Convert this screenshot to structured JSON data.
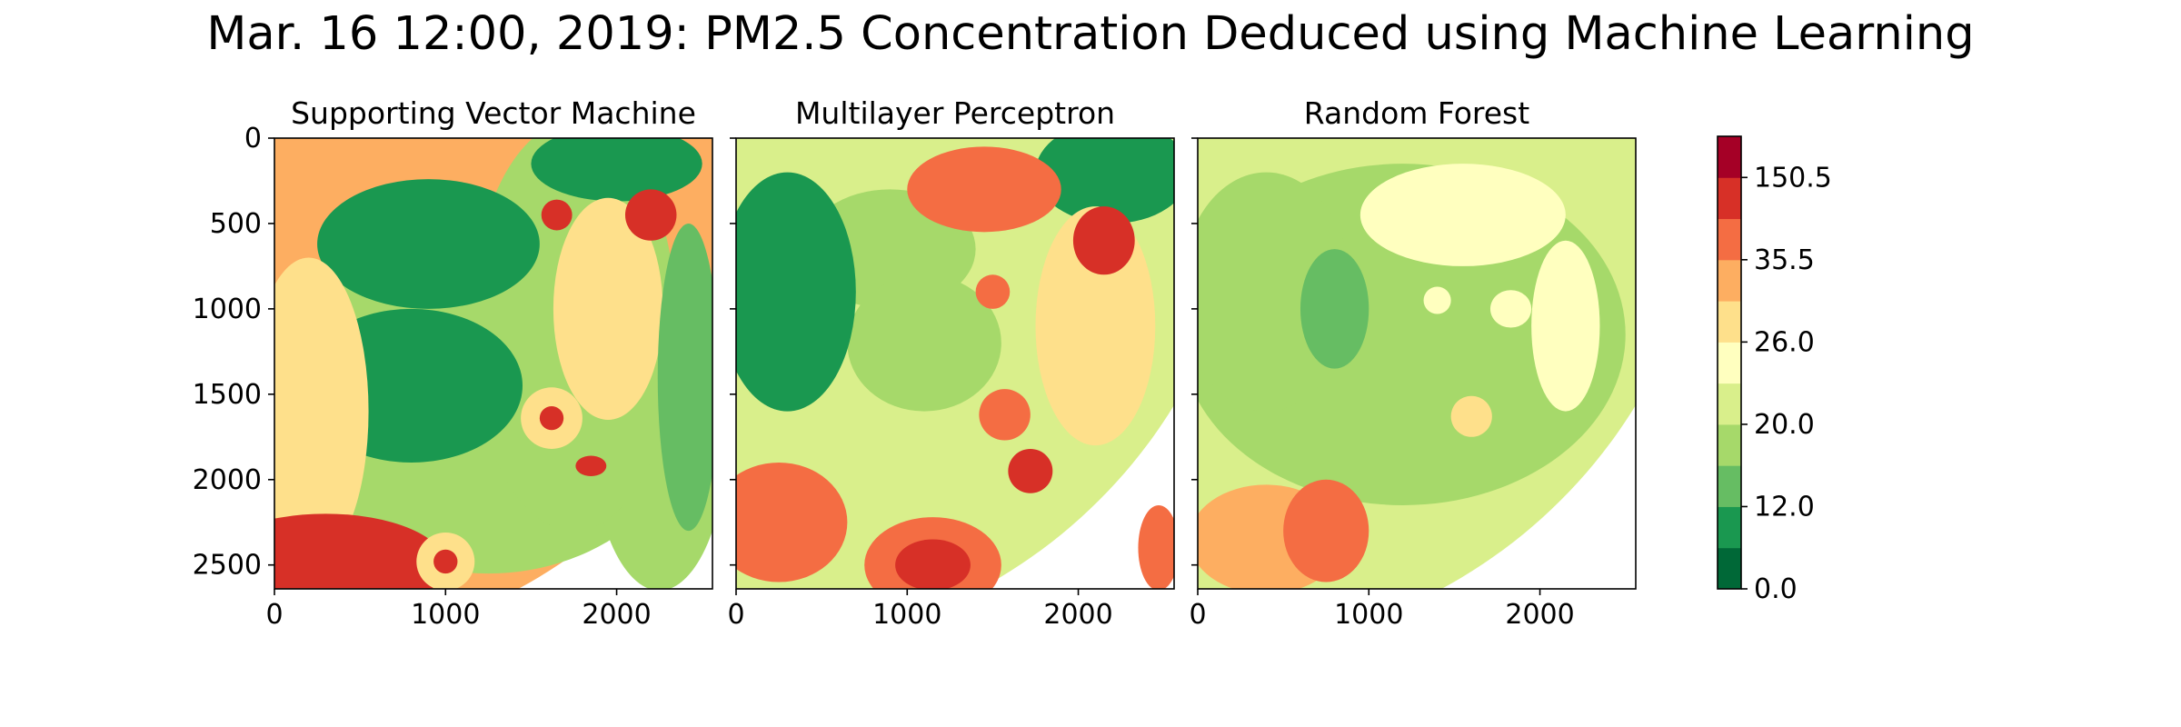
{
  "figure": {
    "title": "Mar. 16 12:00, 2019: PM2.5 Concentration Deduced using Machine Learning"
  },
  "chart_data": [
    {
      "type": "heatmap",
      "title": "Supporting Vector Machine",
      "x_ticks": [
        0,
        1000,
        2000
      ],
      "y_ticks": [
        0,
        500,
        1000,
        1500,
        2000,
        2500
      ],
      "xlim": [
        0,
        2560
      ],
      "ylim": [
        2640,
        0
      ],
      "regions": [
        {
          "kind": "ellipse",
          "cx": 0,
          "cy": 0,
          "rx": 3000,
          "ry": 3000,
          "level": 7
        },
        {
          "kind": "ellipse",
          "cx": 1250,
          "cy": 1450,
          "rx": 1250,
          "ry": 1100,
          "level": 3
        },
        {
          "kind": "ellipse",
          "cx": 2250,
          "cy": 1700,
          "rx": 400,
          "ry": 950,
          "level": 3
        },
        {
          "kind": "ellipse",
          "cx": 1750,
          "cy": 1100,
          "rx": 600,
          "ry": 1200,
          "level": 3
        },
        {
          "kind": "ellipse",
          "cx": 900,
          "cy": 620,
          "rx": 650,
          "ry": 380,
          "level": 1
        },
        {
          "kind": "ellipse",
          "cx": 800,
          "cy": 1450,
          "rx": 650,
          "ry": 450,
          "level": 1
        },
        {
          "kind": "ellipse",
          "cx": 2000,
          "cy": 150,
          "rx": 500,
          "ry": 220,
          "level": 1
        },
        {
          "kind": "ellipse",
          "cx": 1950,
          "cy": 1000,
          "rx": 320,
          "ry": 650,
          "level": 6
        },
        {
          "kind": "ellipse",
          "cx": 2420,
          "cy": 1400,
          "rx": 180,
          "ry": 900,
          "level": 2
        },
        {
          "kind": "ellipse",
          "cx": 200,
          "cy": 1600,
          "rx": 350,
          "ry": 900,
          "level": 6
        },
        {
          "kind": "ellipse",
          "cx": 300,
          "cy": 2500,
          "rx": 700,
          "ry": 300,
          "level": 9
        },
        {
          "kind": "ellipse",
          "cx": 1620,
          "cy": 1640,
          "rx": 180,
          "ry": 180,
          "level": 6
        },
        {
          "kind": "ellipse",
          "cx": 1620,
          "cy": 1640,
          "rx": 70,
          "ry": 70,
          "level": 9
        },
        {
          "kind": "ellipse",
          "cx": 1000,
          "cy": 2480,
          "rx": 170,
          "ry": 170,
          "level": 6
        },
        {
          "kind": "ellipse",
          "cx": 1000,
          "cy": 2480,
          "rx": 70,
          "ry": 70,
          "level": 9
        },
        {
          "kind": "ellipse",
          "cx": 1650,
          "cy": 450,
          "rx": 90,
          "ry": 90,
          "level": 9
        },
        {
          "kind": "ellipse",
          "cx": 2200,
          "cy": 450,
          "rx": 150,
          "ry": 150,
          "level": 9
        },
        {
          "kind": "ellipse",
          "cx": 1850,
          "cy": 1920,
          "rx": 90,
          "ry": 60,
          "level": 9
        }
      ]
    },
    {
      "type": "heatmap",
      "title": "Multilayer Perceptron",
      "x_ticks": [
        0,
        1000,
        2000
      ],
      "y_ticks": [
        0,
        500,
        1000,
        1500,
        2000,
        2500
      ],
      "xlim": [
        0,
        2560
      ],
      "ylim": [
        2640,
        0
      ],
      "regions": [
        {
          "kind": "ellipse",
          "cx": 0,
          "cy": 0,
          "rx": 3000,
          "ry": 3000,
          "level": 4
        },
        {
          "kind": "ellipse",
          "cx": 900,
          "cy": 650,
          "rx": 500,
          "ry": 350,
          "level": 3
        },
        {
          "kind": "ellipse",
          "cx": 1100,
          "cy": 1200,
          "rx": 450,
          "ry": 400,
          "level": 3
        },
        {
          "kind": "ellipse",
          "cx": 300,
          "cy": 900,
          "rx": 400,
          "ry": 700,
          "level": 1
        },
        {
          "kind": "ellipse",
          "cx": 2200,
          "cy": 200,
          "rx": 450,
          "ry": 300,
          "level": 1
        },
        {
          "kind": "ellipse",
          "cx": 2100,
          "cy": 1100,
          "rx": 350,
          "ry": 700,
          "level": 6
        },
        {
          "kind": "ellipse",
          "cx": 2150,
          "cy": 600,
          "rx": 180,
          "ry": 200,
          "level": 9
        },
        {
          "kind": "ellipse",
          "cx": 1450,
          "cy": 300,
          "rx": 450,
          "ry": 250,
          "level": 8
        },
        {
          "kind": "ellipse",
          "cx": 250,
          "cy": 2250,
          "rx": 400,
          "ry": 350,
          "level": 8
        },
        {
          "kind": "ellipse",
          "cx": 1150,
          "cy": 2500,
          "rx": 400,
          "ry": 280,
          "level": 8
        },
        {
          "kind": "ellipse",
          "cx": 1150,
          "cy": 2500,
          "rx": 220,
          "ry": 150,
          "level": 9
        },
        {
          "kind": "ellipse",
          "cx": 1570,
          "cy": 1620,
          "rx": 150,
          "ry": 150,
          "level": 8
        },
        {
          "kind": "ellipse",
          "cx": 1720,
          "cy": 1950,
          "rx": 130,
          "ry": 130,
          "level": 9
        },
        {
          "kind": "ellipse",
          "cx": 1500,
          "cy": 900,
          "rx": 100,
          "ry": 100,
          "level": 8
        },
        {
          "kind": "ellipse",
          "cx": 2470,
          "cy": 2400,
          "rx": 120,
          "ry": 250,
          "level": 8
        }
      ]
    },
    {
      "type": "heatmap",
      "title": "Random Forest",
      "x_ticks": [
        0,
        1000,
        2000
      ],
      "y_ticks": [
        0,
        500,
        1000,
        1500,
        2000,
        2500
      ],
      "xlim": [
        0,
        2560
      ],
      "ylim": [
        2640,
        0
      ],
      "regions": [
        {
          "kind": "ellipse",
          "cx": 0,
          "cy": 0,
          "rx": 3000,
          "ry": 3000,
          "level": 4
        },
        {
          "kind": "ellipse",
          "cx": 1200,
          "cy": 1150,
          "rx": 1300,
          "ry": 1000,
          "level": 3
        },
        {
          "kind": "ellipse",
          "cx": 400,
          "cy": 900,
          "rx": 500,
          "ry": 700,
          "level": 3
        },
        {
          "kind": "ellipse",
          "cx": 800,
          "cy": 1000,
          "rx": 200,
          "ry": 350,
          "level": 2
        },
        {
          "kind": "ellipse",
          "cx": 1550,
          "cy": 450,
          "rx": 600,
          "ry": 300,
          "level": 5
        },
        {
          "kind": "ellipse",
          "cx": 2150,
          "cy": 1100,
          "rx": 200,
          "ry": 500,
          "level": 5
        },
        {
          "kind": "ellipse",
          "cx": 400,
          "cy": 2350,
          "rx": 450,
          "ry": 320,
          "level": 7
        },
        {
          "kind": "ellipse",
          "cx": 750,
          "cy": 2300,
          "rx": 250,
          "ry": 300,
          "level": 8
        },
        {
          "kind": "ellipse",
          "cx": 1600,
          "cy": 1630,
          "rx": 120,
          "ry": 120,
          "level": 6
        },
        {
          "kind": "ellipse",
          "cx": 1400,
          "cy": 950,
          "rx": 80,
          "ry": 80,
          "level": 5
        },
        {
          "kind": "ellipse",
          "cx": 1830,
          "cy": 1000,
          "rx": 120,
          "ry": 110,
          "level": 5
        }
      ]
    }
  ],
  "colorbar": {
    "colors": [
      "#006837",
      "#1a9850",
      "#66bd63",
      "#a6d96a",
      "#d9ef8b",
      "#ffffbf",
      "#fee08b",
      "#fdae61",
      "#f46d43",
      "#d73027",
      "#a50026"
    ],
    "tick_labels": [
      "0.0",
      "12.0",
      "20.0",
      "26.0",
      "35.5",
      "150.5"
    ],
    "tick_levels": [
      0,
      2,
      4,
      6,
      8,
      10
    ]
  }
}
